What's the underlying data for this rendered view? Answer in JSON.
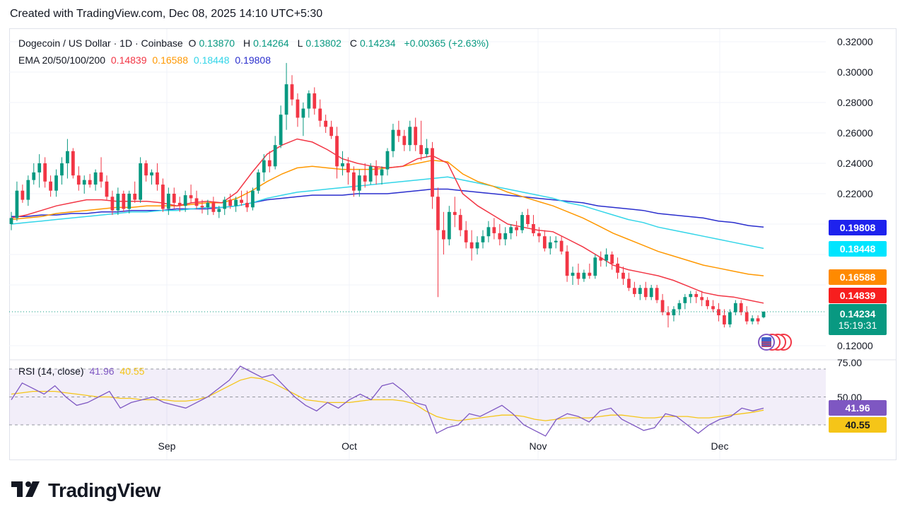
{
  "header": {
    "created": "Created with TradingView.com, Dec 08, 2025 14:10 UTC+5:30"
  },
  "symbol": {
    "title": "Dogecoin / US Dollar · 1D · Coinbase",
    "o_label": "O",
    "o": "0.13870",
    "h_label": "H",
    "h": "0.14264",
    "l_label": "L",
    "l": "0.13802",
    "c_label": "C",
    "c": "0.14234",
    "change": "+0.00365 (+2.63%)"
  },
  "ema": {
    "label": "EMA 20/50/100/200",
    "v20": "0.14839",
    "v50": "0.16588",
    "v100": "0.18448",
    "v200": "0.19808",
    "c20": "#f23645",
    "c50": "#ff9800",
    "c100": "#33d5e8",
    "c200": "#2a2ecd"
  },
  "price_axis": {
    "ticks": [
      "0.32000",
      "0.30000",
      "0.28000",
      "0.26000",
      "0.24000",
      "0.22000",
      "0.12000"
    ],
    "tag_198": "0.19808",
    "tag_184": "0.18448",
    "tag_166": "0.16588",
    "tag_148": "0.14839",
    "last_price": "0.14234",
    "countdown": "15:19:31"
  },
  "rsi": {
    "label": "RSI (14, close)",
    "rsi_value": "41.96",
    "ma_value": "40.55",
    "ticks": [
      "75.00",
      "50.00"
    ],
    "line_color": "#7e57c2",
    "ma_color": "#f5c518"
  },
  "time_axis": {
    "labels": [
      "Sep",
      "Oct",
      "Nov",
      "Dec"
    ]
  },
  "brand": {
    "name": "TradingView"
  },
  "chart_data": {
    "type": "candlestick",
    "title": "Dogecoin / US Dollar · 1D · Coinbase",
    "ylim": [
      0.12,
      0.32
    ],
    "candles": [
      [
        0.2,
        0.208,
        0.196,
        0.204
      ],
      [
        0.204,
        0.228,
        0.202,
        0.222
      ],
      [
        0.222,
        0.226,
        0.214,
        0.216
      ],
      [
        0.216,
        0.232,
        0.212,
        0.229
      ],
      [
        0.229,
        0.24,
        0.226,
        0.234
      ],
      [
        0.234,
        0.246,
        0.224,
        0.24
      ],
      [
        0.24,
        0.244,
        0.224,
        0.228
      ],
      [
        0.228,
        0.232,
        0.218,
        0.222
      ],
      [
        0.222,
        0.236,
        0.218,
        0.232
      ],
      [
        0.232,
        0.244,
        0.226,
        0.24
      ],
      [
        0.24,
        0.256,
        0.23,
        0.248
      ],
      [
        0.248,
        0.25,
        0.23,
        0.232
      ],
      [
        0.232,
        0.238,
        0.222,
        0.226
      ],
      [
        0.226,
        0.232,
        0.22,
        0.229
      ],
      [
        0.229,
        0.233,
        0.224,
        0.226
      ],
      [
        0.226,
        0.236,
        0.222,
        0.234
      ],
      [
        0.234,
        0.244,
        0.224,
        0.228
      ],
      [
        0.228,
        0.232,
        0.216,
        0.218
      ],
      [
        0.218,
        0.222,
        0.206,
        0.209
      ],
      [
        0.209,
        0.224,
        0.206,
        0.22
      ],
      [
        0.22,
        0.222,
        0.208,
        0.21
      ],
      [
        0.21,
        0.222,
        0.207,
        0.22
      ],
      [
        0.22,
        0.228,
        0.214,
        0.216
      ],
      [
        0.216,
        0.244,
        0.214,
        0.24
      ],
      [
        0.24,
        0.242,
        0.228,
        0.232
      ],
      [
        0.232,
        0.236,
        0.226,
        0.234
      ],
      [
        0.234,
        0.24,
        0.222,
        0.226
      ],
      [
        0.226,
        0.23,
        0.208,
        0.21
      ],
      [
        0.21,
        0.224,
        0.206,
        0.22
      ],
      [
        0.22,
        0.224,
        0.21,
        0.214
      ],
      [
        0.214,
        0.218,
        0.208,
        0.212
      ],
      [
        0.212,
        0.222,
        0.208,
        0.219
      ],
      [
        0.219,
        0.226,
        0.214,
        0.217
      ],
      [
        0.217,
        0.222,
        0.21,
        0.212
      ],
      [
        0.212,
        0.216,
        0.207,
        0.211
      ],
      [
        0.211,
        0.216,
        0.206,
        0.214
      ],
      [
        0.214,
        0.218,
        0.206,
        0.208
      ],
      [
        0.208,
        0.212,
        0.204,
        0.21
      ],
      [
        0.21,
        0.218,
        0.206,
        0.216
      ],
      [
        0.216,
        0.22,
        0.21,
        0.212
      ],
      [
        0.212,
        0.218,
        0.208,
        0.216
      ],
      [
        0.216,
        0.222,
        0.212,
        0.214
      ],
      [
        0.214,
        0.222,
        0.208,
        0.211
      ],
      [
        0.211,
        0.224,
        0.209,
        0.222
      ],
      [
        0.222,
        0.236,
        0.22,
        0.234
      ],
      [
        0.234,
        0.246,
        0.228,
        0.242
      ],
      [
        0.242,
        0.248,
        0.234,
        0.238
      ],
      [
        0.238,
        0.258,
        0.236,
        0.252
      ],
      [
        0.252,
        0.278,
        0.25,
        0.272
      ],
      [
        0.272,
        0.306,
        0.262,
        0.292
      ],
      [
        0.292,
        0.298,
        0.278,
        0.282
      ],
      [
        0.282,
        0.286,
        0.264,
        0.27
      ],
      [
        0.27,
        0.28,
        0.258,
        0.276
      ],
      [
        0.276,
        0.288,
        0.27,
        0.286
      ],
      [
        0.286,
        0.29,
        0.272,
        0.276
      ],
      [
        0.276,
        0.282,
        0.264,
        0.268
      ],
      [
        0.268,
        0.272,
        0.26,
        0.264
      ],
      [
        0.264,
        0.268,
        0.256,
        0.258
      ],
      [
        0.258,
        0.264,
        0.23,
        0.238
      ],
      [
        0.238,
        0.248,
        0.232,
        0.24
      ],
      [
        0.24,
        0.244,
        0.226,
        0.234
      ],
      [
        0.234,
        0.238,
        0.218,
        0.222
      ],
      [
        0.222,
        0.236,
        0.218,
        0.232
      ],
      [
        0.232,
        0.24,
        0.224,
        0.228
      ],
      [
        0.228,
        0.24,
        0.226,
        0.238
      ],
      [
        0.238,
        0.242,
        0.226,
        0.232
      ],
      [
        0.232,
        0.238,
        0.226,
        0.236
      ],
      [
        0.236,
        0.25,
        0.232,
        0.248
      ],
      [
        0.248,
        0.266,
        0.244,
        0.262
      ],
      [
        0.262,
        0.268,
        0.254,
        0.258
      ],
      [
        0.258,
        0.262,
        0.248,
        0.252
      ],
      [
        0.252,
        0.268,
        0.248,
        0.264
      ],
      [
        0.264,
        0.27,
        0.248,
        0.252
      ],
      [
        0.252,
        0.268,
        0.242,
        0.246
      ],
      [
        0.246,
        0.256,
        0.244,
        0.25
      ],
      [
        0.25,
        0.254,
        0.21,
        0.218
      ],
      [
        0.218,
        0.224,
        0.152,
        0.196
      ],
      [
        0.196,
        0.208,
        0.18,
        0.19
      ],
      [
        0.19,
        0.212,
        0.186,
        0.208
      ],
      [
        0.208,
        0.218,
        0.198,
        0.206
      ],
      [
        0.206,
        0.21,
        0.192,
        0.196
      ],
      [
        0.196,
        0.202,
        0.184,
        0.188
      ],
      [
        0.188,
        0.196,
        0.176,
        0.184
      ],
      [
        0.184,
        0.192,
        0.18,
        0.188
      ],
      [
        0.188,
        0.196,
        0.184,
        0.192
      ],
      [
        0.192,
        0.202,
        0.188,
        0.198
      ],
      [
        0.198,
        0.204,
        0.19,
        0.194
      ],
      [
        0.194,
        0.2,
        0.186,
        0.19
      ],
      [
        0.19,
        0.198,
        0.186,
        0.194
      ],
      [
        0.194,
        0.2,
        0.19,
        0.198
      ],
      [
        0.198,
        0.202,
        0.192,
        0.196
      ],
      [
        0.196,
        0.208,
        0.194,
        0.206
      ],
      [
        0.206,
        0.21,
        0.198,
        0.2
      ],
      [
        0.2,
        0.206,
        0.192,
        0.194
      ],
      [
        0.194,
        0.198,
        0.188,
        0.192
      ],
      [
        0.192,
        0.196,
        0.182,
        0.184
      ],
      [
        0.184,
        0.192,
        0.18,
        0.188
      ],
      [
        0.188,
        0.192,
        0.184,
        0.189
      ],
      [
        0.189,
        0.192,
        0.18,
        0.182
      ],
      [
        0.182,
        0.186,
        0.162,
        0.166
      ],
      [
        0.166,
        0.172,
        0.16,
        0.168
      ],
      [
        0.168,
        0.174,
        0.16,
        0.164
      ],
      [
        0.164,
        0.17,
        0.162,
        0.168
      ],
      [
        0.168,
        0.174,
        0.164,
        0.166
      ],
      [
        0.166,
        0.18,
        0.164,
        0.178
      ],
      [
        0.178,
        0.182,
        0.172,
        0.176
      ],
      [
        0.176,
        0.184,
        0.172,
        0.18
      ],
      [
        0.18,
        0.182,
        0.17,
        0.174
      ],
      [
        0.174,
        0.178,
        0.164,
        0.168
      ],
      [
        0.168,
        0.172,
        0.16,
        0.164
      ],
      [
        0.164,
        0.168,
        0.156,
        0.158
      ],
      [
        0.158,
        0.162,
        0.152,
        0.154
      ],
      [
        0.154,
        0.16,
        0.15,
        0.158
      ],
      [
        0.158,
        0.162,
        0.15,
        0.152
      ],
      [
        0.152,
        0.16,
        0.15,
        0.158
      ],
      [
        0.158,
        0.16,
        0.148,
        0.15
      ],
      [
        0.15,
        0.154,
        0.14,
        0.142
      ],
      [
        0.142,
        0.146,
        0.132,
        0.14
      ],
      [
        0.14,
        0.146,
        0.136,
        0.144
      ],
      [
        0.144,
        0.15,
        0.14,
        0.148
      ],
      [
        0.148,
        0.154,
        0.144,
        0.152
      ],
      [
        0.152,
        0.156,
        0.148,
        0.154
      ],
      [
        0.154,
        0.156,
        0.148,
        0.152
      ],
      [
        0.152,
        0.156,
        0.146,
        0.15
      ],
      [
        0.15,
        0.152,
        0.144,
        0.146
      ],
      [
        0.146,
        0.15,
        0.142,
        0.144
      ],
      [
        0.144,
        0.148,
        0.136,
        0.14
      ],
      [
        0.14,
        0.144,
        0.132,
        0.134
      ],
      [
        0.134,
        0.144,
        0.132,
        0.142
      ],
      [
        0.142,
        0.15,
        0.14,
        0.148
      ],
      [
        0.148,
        0.15,
        0.14,
        0.142
      ],
      [
        0.142,
        0.146,
        0.134,
        0.136
      ],
      [
        0.136,
        0.14,
        0.134,
        0.138
      ],
      [
        0.138,
        0.14,
        0.134,
        0.136
      ],
      [
        0.1387,
        0.14264,
        0.13802,
        0.14234
      ]
    ],
    "ema20": [
      0.204,
      0.206,
      0.209,
      0.212,
      0.214,
      0.216,
      0.216,
      0.215,
      0.215,
      0.215,
      0.214,
      0.212,
      0.214,
      0.215,
      0.214,
      0.221,
      0.234,
      0.246,
      0.252,
      0.256,
      0.254,
      0.249,
      0.243,
      0.24,
      0.238,
      0.237,
      0.238,
      0.243,
      0.245,
      0.24,
      0.22,
      0.212,
      0.206,
      0.2,
      0.198,
      0.196,
      0.195,
      0.19,
      0.185,
      0.179,
      0.173,
      0.17,
      0.168,
      0.166,
      0.163,
      0.159,
      0.155,
      0.153,
      0.152,
      0.15,
      0.148
    ],
    "ema50": [
      0.203,
      0.204,
      0.205,
      0.207,
      0.208,
      0.209,
      0.21,
      0.211,
      0.211,
      0.212,
      0.212,
      0.212,
      0.213,
      0.214,
      0.214,
      0.217,
      0.222,
      0.228,
      0.233,
      0.237,
      0.238,
      0.237,
      0.236,
      0.236,
      0.236,
      0.237,
      0.238,
      0.24,
      0.242,
      0.241,
      0.233,
      0.228,
      0.225,
      0.221,
      0.218,
      0.215,
      0.212,
      0.208,
      0.204,
      0.199,
      0.194,
      0.19,
      0.186,
      0.182,
      0.179,
      0.176,
      0.173,
      0.171,
      0.169,
      0.167,
      0.166
    ],
    "ema100": [
      0.2,
      0.201,
      0.202,
      0.203,
      0.204,
      0.205,
      0.206,
      0.207,
      0.208,
      0.208,
      0.209,
      0.209,
      0.21,
      0.211,
      0.211,
      0.212,
      0.214,
      0.217,
      0.219,
      0.221,
      0.222,
      0.223,
      0.224,
      0.225,
      0.226,
      0.227,
      0.228,
      0.229,
      0.23,
      0.231,
      0.229,
      0.227,
      0.225,
      0.223,
      0.221,
      0.219,
      0.217,
      0.214,
      0.212,
      0.209,
      0.206,
      0.203,
      0.201,
      0.198,
      0.196,
      0.194,
      0.192,
      0.19,
      0.188,
      0.186,
      0.184
    ],
    "ema200": [
      0.205,
      0.205,
      0.206,
      0.206,
      0.207,
      0.207,
      0.208,
      0.208,
      0.209,
      0.209,
      0.209,
      0.21,
      0.21,
      0.21,
      0.211,
      0.212,
      0.214,
      0.216,
      0.217,
      0.218,
      0.219,
      0.219,
      0.219,
      0.22,
      0.22,
      0.22,
      0.221,
      0.222,
      0.223,
      0.223,
      0.222,
      0.221,
      0.22,
      0.219,
      0.218,
      0.217,
      0.216,
      0.215,
      0.214,
      0.212,
      0.211,
      0.21,
      0.209,
      0.207,
      0.206,
      0.205,
      0.204,
      0.202,
      0.201,
      0.199,
      0.198
    ],
    "rsi": [
      48,
      60,
      56,
      52,
      58,
      50,
      44,
      46,
      50,
      54,
      42,
      46,
      48,
      50,
      46,
      44,
      42,
      46,
      50,
      56,
      62,
      72,
      68,
      64,
      66,
      58,
      50,
      44,
      40,
      46,
      42,
      48,
      52,
      48,
      58,
      60,
      54,
      46,
      44,
      24,
      28,
      30,
      38,
      36,
      40,
      44,
      38,
      30,
      26,
      22,
      34,
      38,
      36,
      32,
      40,
      42,
      34,
      30,
      26,
      28,
      38,
      36,
      30,
      24,
      30,
      34,
      36,
      42,
      40,
      41.96
    ],
    "rsi_ma": [
      52,
      53,
      54,
      54,
      54,
      53,
      52,
      51,
      50,
      50,
      49,
      49,
      48,
      48,
      48,
      47,
      47,
      48,
      50,
      54,
      58,
      62,
      64,
      63,
      60,
      56,
      52,
      48,
      47,
      46,
      46,
      46,
      47,
      48,
      48,
      48,
      47,
      45,
      40,
      36,
      34,
      33,
      34,
      35,
      36,
      37,
      37,
      36,
      34,
      33,
      34,
      35,
      35,
      35,
      36,
      37,
      37,
      36,
      35,
      35,
      36,
      36,
      36,
      35,
      35,
      36,
      37,
      38,
      39,
      40.55
    ],
    "time_labels": [
      "Sep",
      "Oct",
      "Nov",
      "Dec"
    ]
  }
}
